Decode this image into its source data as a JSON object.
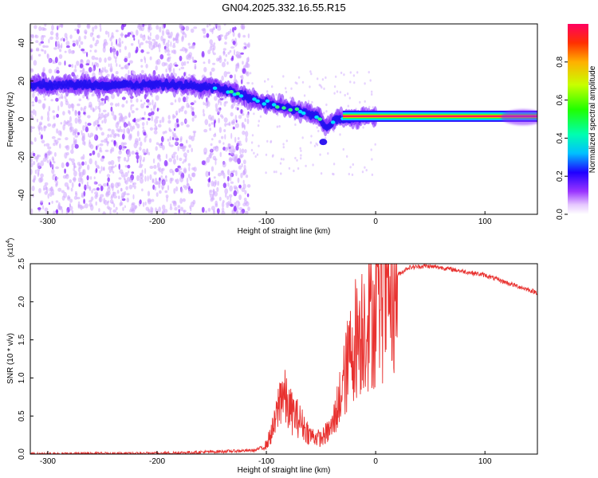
{
  "title": "GN04.2025.332.16.55.R15",
  "chart_data": [
    {
      "type": "heatmap",
      "xlabel": "Height of straight line (km)",
      "ylabel": "Frequency (Hz)",
      "xlim": [
        -316,
        148
      ],
      "ylim": [
        -50,
        50
      ],
      "x_ticks": [
        -300,
        -200,
        -100,
        0,
        100
      ],
      "y_ticks": [
        -40,
        -20,
        0,
        20,
        40
      ],
      "colorbar": {
        "label": "Normalized spectral amplitude",
        "ticks": [
          0.0,
          0.2,
          0.4,
          0.6,
          0.8
        ],
        "range": [
          0,
          1
        ]
      },
      "ridge_track": [
        {
          "x": -316,
          "y": 18
        },
        {
          "x": -250,
          "y": 18
        },
        {
          "x": -180,
          "y": 18
        },
        {
          "x": -140,
          "y": 16
        },
        {
          "x": -110,
          "y": 10
        },
        {
          "x": -80,
          "y": 6
        },
        {
          "x": -55,
          "y": 2
        },
        {
          "x": -45,
          "y": -4
        },
        {
          "x": -35,
          "y": 0
        },
        {
          "x": -10,
          "y": 1
        },
        {
          "x": 0,
          "y": 2
        },
        {
          "x": 110,
          "y": 1
        },
        {
          "x": 148,
          "y": 0
        }
      ]
    },
    {
      "type": "line",
      "xlabel": "Height of straight line (km)",
      "ylabel": "SNR (10 * v/v)",
      "y_multiplier_label": "(x10",
      "y_multiplier_exp": "4",
      "xlim": [
        -316,
        148
      ],
      "ylim": [
        0,
        2.5
      ],
      "x_ticks": [
        -300,
        -200,
        -100,
        0,
        100
      ],
      "y_ticks": [
        "0.0",
        "0.5",
        "1.0",
        "1.5",
        "2.0",
        "2.5"
      ],
      "series": [
        {
          "name": "SNR",
          "color": "#e8312f",
          "points": [
            {
              "x": -316,
              "y": 0.0
            },
            {
              "x": -200,
              "y": 0.01
            },
            {
              "x": -150,
              "y": 0.03
            },
            {
              "x": -110,
              "y": 0.05
            },
            {
              "x": -100,
              "y": 0.12
            },
            {
              "x": -92,
              "y": 0.4
            },
            {
              "x": -86,
              "y": 0.85
            },
            {
              "x": -80,
              "y": 0.6
            },
            {
              "x": -70,
              "y": 0.45
            },
            {
              "x": -60,
              "y": 0.25
            },
            {
              "x": -50,
              "y": 0.2
            },
            {
              "x": -40,
              "y": 0.35
            },
            {
              "x": -30,
              "y": 0.9
            },
            {
              "x": -20,
              "y": 1.5
            },
            {
              "x": -10,
              "y": 1.75
            },
            {
              "x": 0,
              "y": 1.85
            },
            {
              "x": 10,
              "y": 2.1
            },
            {
              "x": 20,
              "y": 2.35
            },
            {
              "x": 30,
              "y": 2.45
            },
            {
              "x": 45,
              "y": 2.47
            },
            {
              "x": 60,
              "y": 2.45
            },
            {
              "x": 80,
              "y": 2.4
            },
            {
              "x": 100,
              "y": 2.35
            },
            {
              "x": 120,
              "y": 2.25
            },
            {
              "x": 148,
              "y": 2.12
            }
          ]
        }
      ]
    }
  ]
}
